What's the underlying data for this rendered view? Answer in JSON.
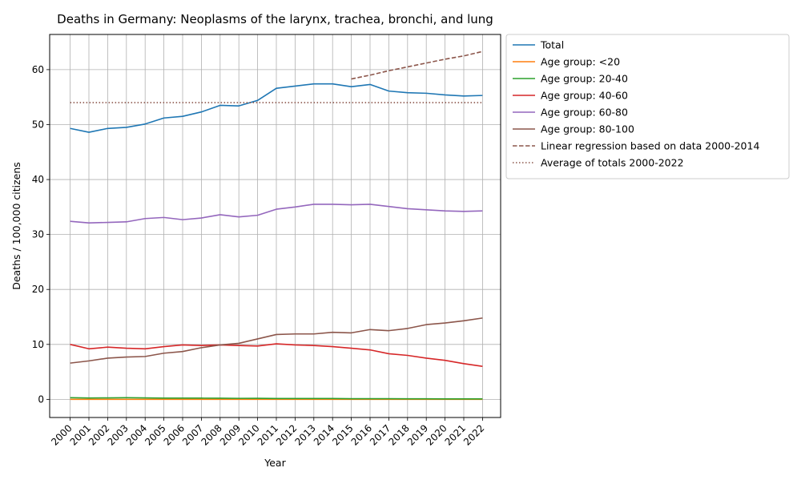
{
  "chart_data": {
    "type": "line",
    "title": "Deaths in Germany: Neoplasms of the larynx, trachea, bronchi, and lung",
    "xlabel": "Year",
    "ylabel": "Deaths / 100,000 citizens",
    "ylim": [
      -3.3,
      66.4
    ],
    "yticks": [
      0,
      10,
      20,
      30,
      40,
      50,
      60
    ],
    "grid": true,
    "legend_position": "outside-top-right",
    "x": [
      "2000",
      "2001",
      "2002",
      "2003",
      "2004",
      "2005",
      "2006",
      "2007",
      "2008",
      "2009",
      "2010",
      "2011",
      "2012",
      "2013",
      "2014",
      "2015",
      "2016",
      "2017",
      "2018",
      "2019",
      "2020",
      "2021",
      "2022"
    ],
    "series": [
      {
        "name": "Total",
        "color": "#1f77b4",
        "style": "solid",
        "values": [
          49.3,
          48.6,
          49.3,
          49.5,
          50.1,
          51.2,
          51.5,
          52.3,
          53.5,
          53.4,
          54.4,
          56.6,
          57.0,
          57.4,
          57.4,
          56.9,
          57.3,
          56.1,
          55.8,
          55.7,
          55.4,
          55.2,
          55.3
        ]
      },
      {
        "name": "Age group: <20",
        "color": "#ff7f0e",
        "style": "solid",
        "values": [
          0.0,
          0.0,
          0.0,
          0.0,
          0.0,
          0.0,
          0.0,
          0.0,
          0.0,
          0.0,
          0.0,
          0.0,
          0.0,
          0.0,
          0.0,
          0.0,
          0.0,
          0.0,
          0.0,
          0.0,
          0.0,
          0.0,
          0.0
        ]
      },
      {
        "name": "Age group: 20-40",
        "color": "#2ca02c",
        "style": "solid",
        "values": [
          0.3,
          0.25,
          0.27,
          0.3,
          0.27,
          0.22,
          0.22,
          0.22,
          0.21,
          0.18,
          0.19,
          0.15,
          0.15,
          0.15,
          0.15,
          0.12,
          0.12,
          0.12,
          0.1,
          0.1,
          0.08,
          0.08,
          0.08
        ]
      },
      {
        "name": "Age group: 40-60",
        "color": "#d62728",
        "style": "solid",
        "values": [
          10.0,
          9.2,
          9.5,
          9.3,
          9.2,
          9.6,
          9.9,
          9.8,
          9.9,
          9.8,
          9.7,
          10.1,
          9.9,
          9.8,
          9.6,
          9.3,
          9.0,
          8.3,
          8.0,
          7.5,
          7.1,
          6.5,
          6.0
        ]
      },
      {
        "name": "Age group: 60-80",
        "color": "#9467bd",
        "style": "solid",
        "values": [
          32.4,
          32.1,
          32.2,
          32.3,
          32.9,
          33.1,
          32.7,
          33.0,
          33.6,
          33.2,
          33.5,
          34.6,
          35.0,
          35.5,
          35.5,
          35.4,
          35.5,
          35.1,
          34.7,
          34.5,
          34.3,
          34.2,
          34.3
        ]
      },
      {
        "name": "Age group: 80-100",
        "color": "#8c564b",
        "style": "solid",
        "values": [
          6.6,
          7.0,
          7.5,
          7.7,
          7.8,
          8.4,
          8.7,
          9.4,
          9.9,
          10.2,
          11.0,
          11.8,
          11.9,
          11.9,
          12.2,
          12.1,
          12.7,
          12.5,
          12.9,
          13.6,
          13.9,
          14.3,
          14.8
        ]
      },
      {
        "name": "Linear regression based on data 2000-2014",
        "color": "#8c564b",
        "style": "dashed",
        "x": [
          "2015",
          "2016",
          "2017",
          "2018",
          "2019",
          "2020",
          "2021",
          "2022"
        ],
        "values": [
          58.3,
          59.0,
          59.8,
          60.5,
          61.2,
          61.9,
          62.5,
          63.3
        ]
      },
      {
        "name": "Average of totals 2000-2022",
        "color": "#8c564b",
        "style": "dotted",
        "values": [
          54.0,
          54.0,
          54.0,
          54.0,
          54.0,
          54.0,
          54.0,
          54.0,
          54.0,
          54.0,
          54.0,
          54.0,
          54.0,
          54.0,
          54.0,
          54.0,
          54.0,
          54.0,
          54.0,
          54.0,
          54.0,
          54.0,
          54.0
        ]
      }
    ]
  }
}
